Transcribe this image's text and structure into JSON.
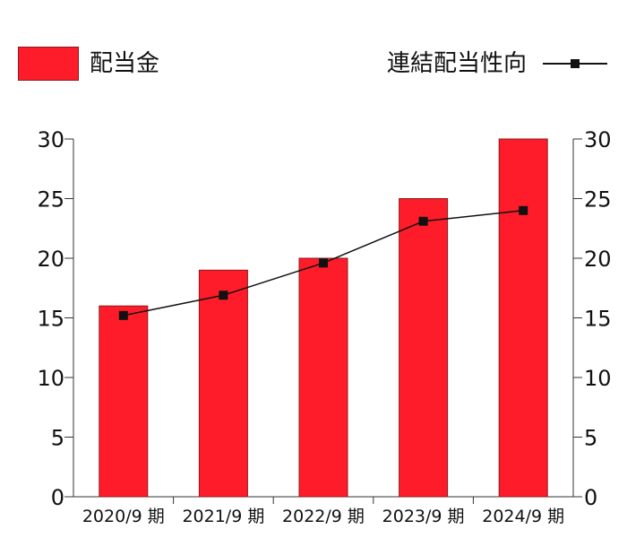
{
  "chart_data": {
    "type": "bar",
    "categories": [
      "2020/9 期",
      "2021/9 期",
      "2022/9 期",
      "2023/9 期",
      "2024/9 期"
    ],
    "series": [
      {
        "name": "配当金",
        "type": "bar",
        "values": [
          16,
          19,
          20,
          25,
          30
        ],
        "color": "#ff1c2a"
      },
      {
        "name": "連結配当性向",
        "type": "line",
        "values": [
          15.2,
          16.9,
          19.6,
          23.1,
          24.0
        ],
        "color": "#111111"
      }
    ],
    "ylim": [
      0,
      30
    ],
    "yticks": [
      "0",
      "5",
      "10",
      "15",
      "20",
      "25",
      "30"
    ],
    "y2lim": [
      0,
      30
    ],
    "y2ticks": [
      "0",
      "5",
      "10",
      "15",
      "20",
      "25",
      "30"
    ],
    "legend": "top",
    "grid": false
  }
}
